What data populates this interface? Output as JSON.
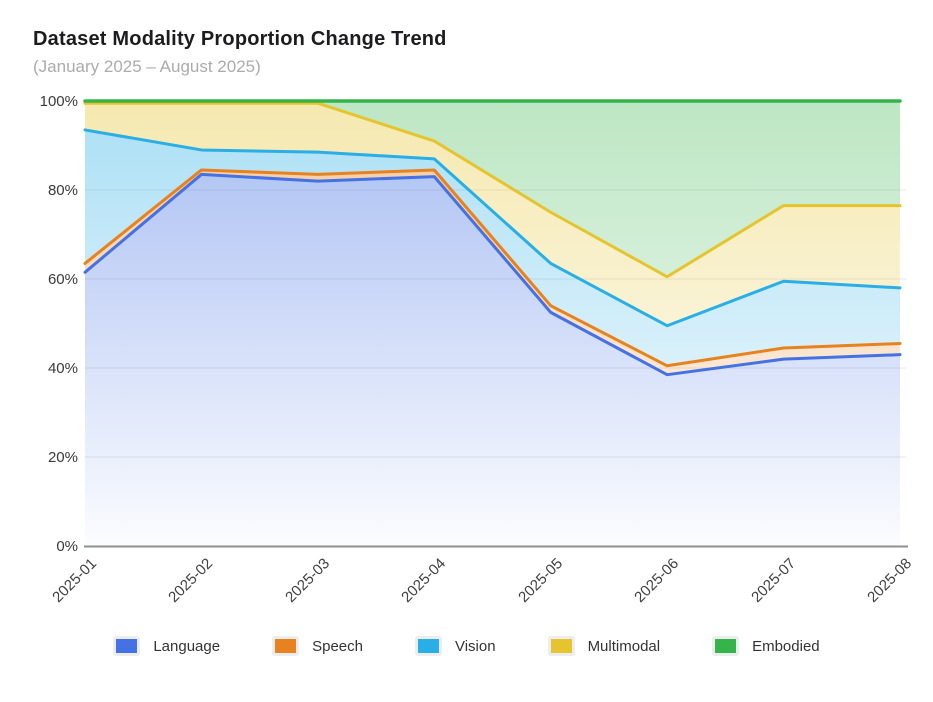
{
  "header": {
    "title": "Dataset Modality Proportion Change Trend",
    "subtitle": "(January 2025 – August 2025)"
  },
  "chart_data": {
    "type": "area",
    "stacked": true,
    "unit": "%",
    "title": "Dataset Modality Proportion Change Trend",
    "subtitle": "(January 2025 – August 2025)",
    "categories": [
      "2025-01",
      "2025-02",
      "2025-03",
      "2025-04",
      "2025-05",
      "2025-06",
      "2025-07",
      "2025-08"
    ],
    "series": [
      {
        "name": "Language",
        "color": "#4472e4",
        "values": [
          61.5,
          83.5,
          82.0,
          83.0,
          52.5,
          38.5,
          42.0,
          43.0
        ]
      },
      {
        "name": "Speech",
        "color": "#e8821e",
        "values": [
          2.0,
          1.0,
          1.5,
          1.5,
          1.5,
          2.0,
          2.5,
          2.5
        ]
      },
      {
        "name": "Vision",
        "color": "#29aee6",
        "values": [
          30.0,
          4.5,
          5.0,
          2.5,
          9.5,
          9.0,
          15.0,
          12.5
        ]
      },
      {
        "name": "Multimodal",
        "color": "#e5c42e",
        "values": [
          6.0,
          10.5,
          11.0,
          4.0,
          11.5,
          11.0,
          17.0,
          18.5
        ]
      },
      {
        "name": "Embodied",
        "color": "#35b44a",
        "values": [
          0.5,
          0.5,
          0.5,
          9.0,
          25.0,
          39.5,
          23.5,
          23.5
        ]
      }
    ],
    "y_ticks": [
      "0%",
      "20%",
      "40%",
      "60%",
      "80%",
      "100%"
    ],
    "ylim": [
      0,
      100
    ],
    "grid": "horizontal",
    "legend_position": "bottom",
    "axis_color": "#8f8f8f",
    "gridline_color": "#e7e7e7"
  }
}
